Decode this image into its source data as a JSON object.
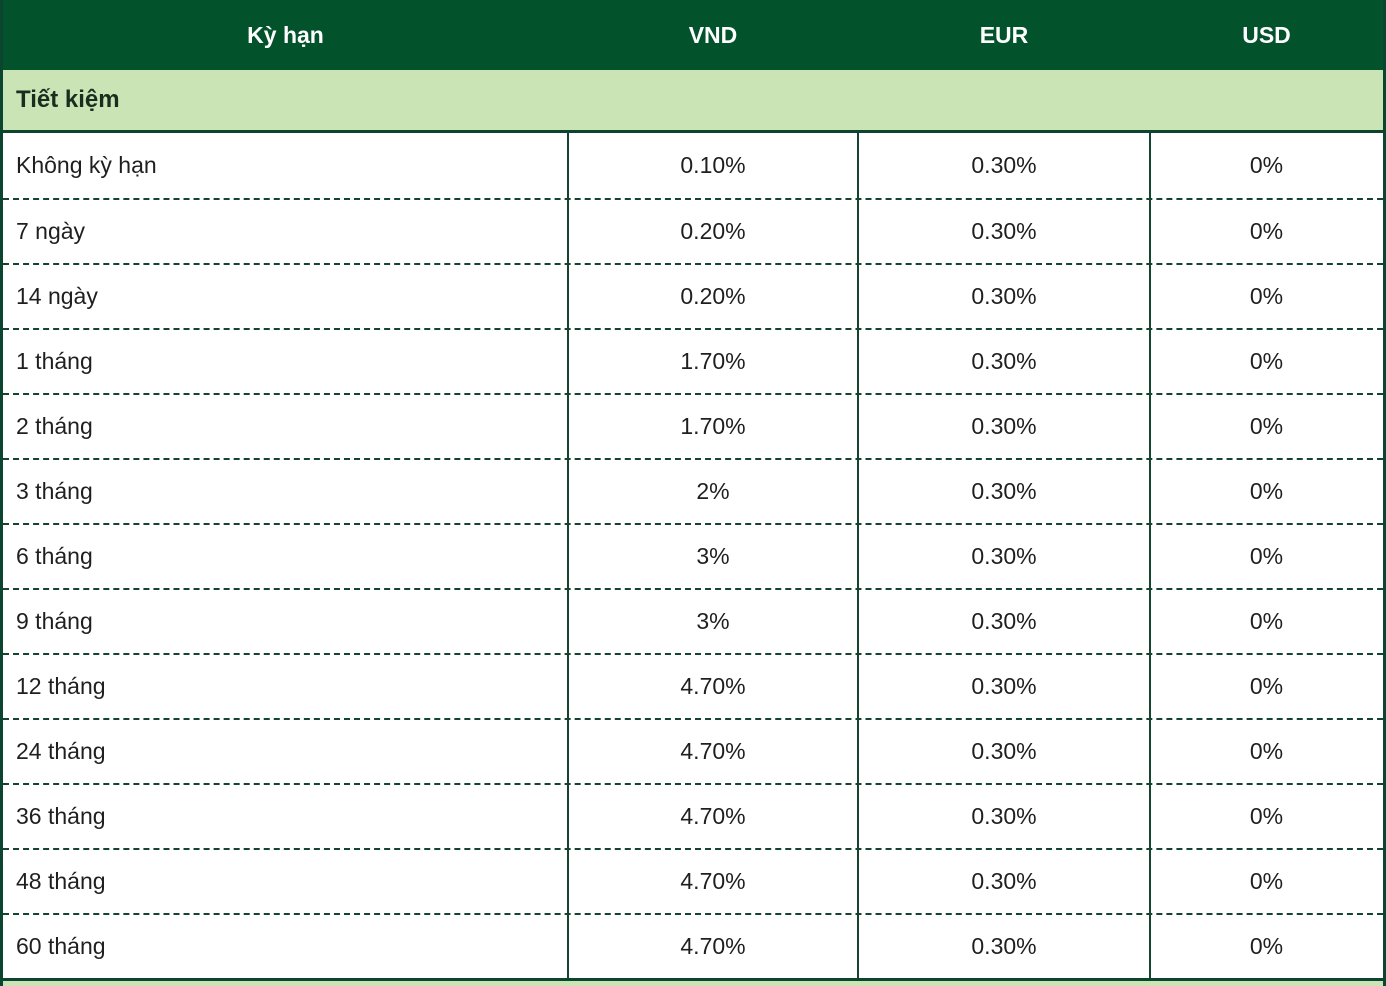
{
  "table": {
    "columns": [
      "Kỳ hạn",
      "VND",
      "EUR",
      "USD"
    ],
    "section_title": "Tiết kiệm",
    "rows": [
      {
        "term": "Không kỳ hạn",
        "vnd": "0.10%",
        "eur": "0.30%",
        "usd": "0%"
      },
      {
        "term": "7 ngày",
        "vnd": "0.20%",
        "eur": "0.30%",
        "usd": "0%"
      },
      {
        "term": "14 ngày",
        "vnd": "0.20%",
        "eur": "0.30%",
        "usd": "0%"
      },
      {
        "term": "1 tháng",
        "vnd": "1.70%",
        "eur": "0.30%",
        "usd": "0%"
      },
      {
        "term": "2 tháng",
        "vnd": "1.70%",
        "eur": "0.30%",
        "usd": "0%"
      },
      {
        "term": "3 tháng",
        "vnd": "2%",
        "eur": "0.30%",
        "usd": "0%"
      },
      {
        "term": "6 tháng",
        "vnd": "3%",
        "eur": "0.30%",
        "usd": "0%"
      },
      {
        "term": "9 tháng",
        "vnd": "3%",
        "eur": "0.30%",
        "usd": "0%"
      },
      {
        "term": "12 tháng",
        "vnd": "4.70%",
        "eur": "0.30%",
        "usd": "0%"
      },
      {
        "term": "24 tháng",
        "vnd": "4.70%",
        "eur": "0.30%",
        "usd": "0%"
      },
      {
        "term": "36 tháng",
        "vnd": "4.70%",
        "eur": "0.30%",
        "usd": "0%"
      },
      {
        "term": "48 tháng",
        "vnd": "4.70%",
        "eur": "0.30%",
        "usd": "0%"
      },
      {
        "term": "60 tháng",
        "vnd": "4.70%",
        "eur": "0.30%",
        "usd": "0%"
      }
    ]
  },
  "colors": {
    "header_bg": "#02522C",
    "header_text": "#FFFFFF",
    "section_bg": "#CBE4B5",
    "grid_line": "#14432F",
    "body_text": "#1F1F1F"
  }
}
